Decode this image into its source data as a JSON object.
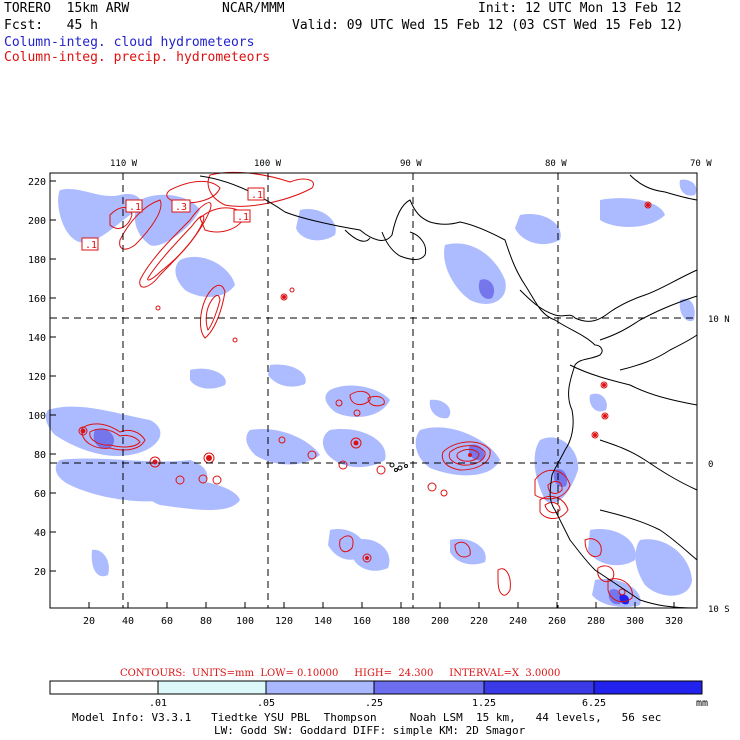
{
  "header": {
    "model": "TORERO  15km ARW",
    "org": "NCAR/MMM",
    "init": "Init: 12 UTC Mon 13 Feb 12",
    "fcst": "Fcst:   45 h",
    "valid": "Valid: 09 UTC Wed 15 Feb 12 (03 CST Wed 15 Feb 12)",
    "field1": "Column-integ. cloud hydrometeors",
    "field2": "Column-integ. precip. hydrometeors"
  },
  "map": {
    "top_labels": [
      "110 W",
      "100 W",
      "90 W",
      "80 W",
      "70 W"
    ],
    "left_labels": [
      "220",
      "200",
      "180",
      "160",
      "140",
      "120",
      "100",
      "80",
      "60",
      "40",
      "20"
    ],
    "bottom_labels": [
      "20",
      "40",
      "60",
      "80",
      "100",
      "120",
      "140",
      "160",
      "180",
      "200",
      "220",
      "240",
      "260",
      "280",
      "300",
      "320"
    ],
    "right_labels": [
      "10 N",
      "0",
      "10 S"
    ],
    "contour_boxes": [
      ".1",
      ".1",
      ".3",
      ".1",
      ".1"
    ]
  },
  "contours": {
    "text": "CONTOURS:  UNITS=mm  LOW= 0.10000     HIGH=  24.300     INTERVAL=X  3.0000"
  },
  "colorbar": {
    "labels": [
      ".01",
      ".05",
      ".25",
      "1.25",
      "6.25"
    ],
    "unit": "mm",
    "colors": [
      "#ffffff",
      "#ddf8f8",
      "#aab8ff",
      "#8f8ff2",
      "#6d6df0",
      "#3a3ae6",
      "#2222ee"
    ]
  },
  "model_info": {
    "line1": "Model Info: V3.3.1   Tiedtke YSU PBL  Thompson     Noah LSM  15 km,   44 levels,   56 sec",
    "line2": "LW: Godd SW: Goddard DIFF: simple KM: 2D Smagor"
  }
}
